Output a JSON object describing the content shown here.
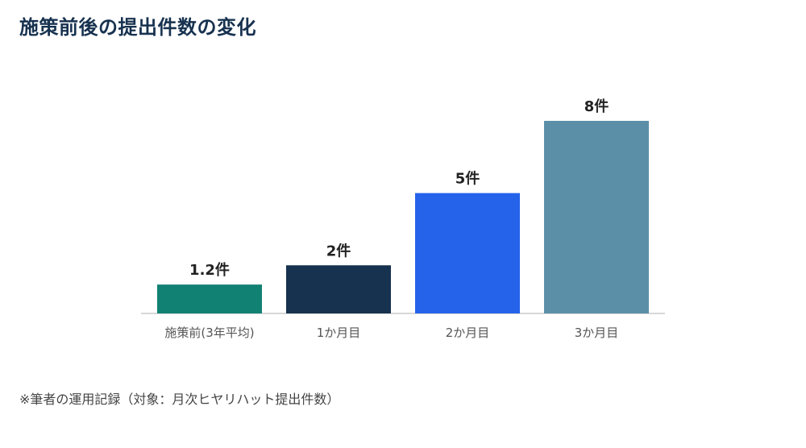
{
  "title": "施策前後の提出件数の変化",
  "footnote": "※筆者の運用記録（対象：月次ヒヤリハット提出件数）",
  "chart_data": {
    "type": "bar",
    "title": "施策前後の提出件数の変化",
    "categories": [
      "施策前(3年平均)",
      "1か月目",
      "2か月目",
      "3か月目"
    ],
    "values": [
      1.2,
      2,
      5,
      8
    ],
    "data_labels": [
      "1.2件",
      "2件",
      "5件",
      "8件"
    ],
    "colors": [
      "#118174",
      "#17324f",
      "#2563eb",
      "#5b8fa8"
    ],
    "xlabel": "",
    "ylabel": "",
    "ylim": [
      0,
      8
    ],
    "grid": false,
    "legend": "none"
  }
}
